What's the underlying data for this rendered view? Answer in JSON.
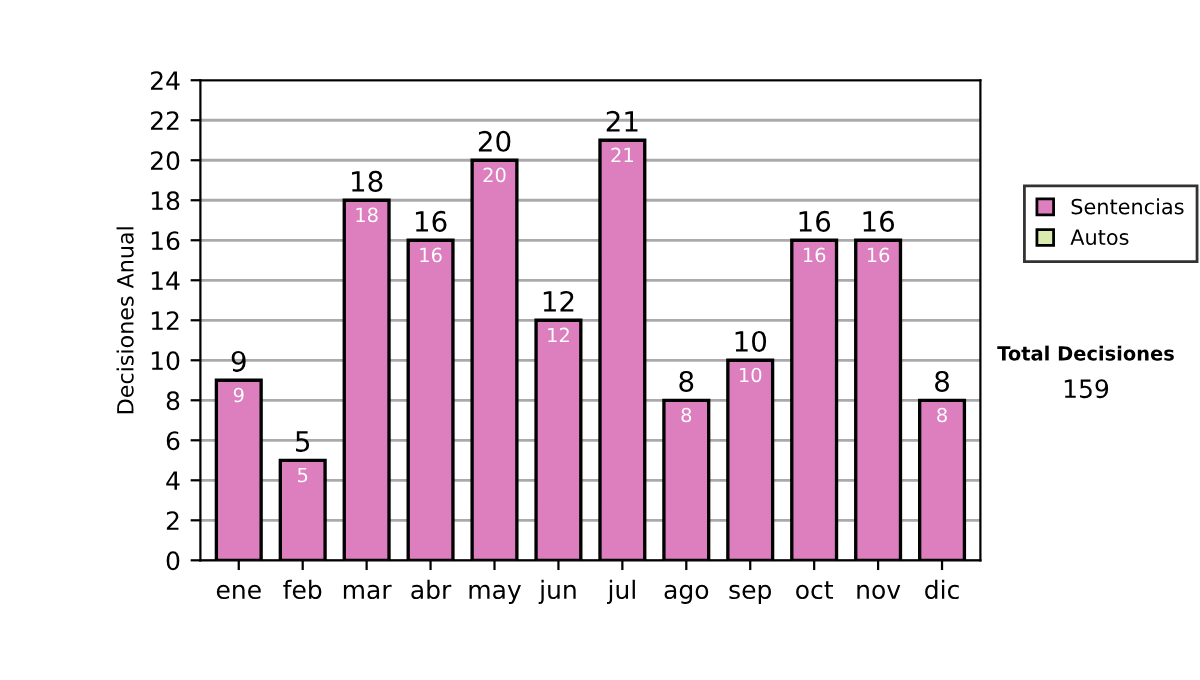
{
  "chart_data": {
    "type": "bar",
    "stacked": true,
    "ylabel": "Decisiones Anual",
    "categories": [
      "ene",
      "feb",
      "mar",
      "abr",
      "may",
      "jun",
      "jul",
      "ago",
      "sep",
      "oct",
      "nov",
      "dic"
    ],
    "series": [
      {
        "name": "Sentencias",
        "color": "#dd7fbf",
        "values": [
          9,
          5,
          18,
          16,
          20,
          12,
          21,
          8,
          10,
          16,
          16,
          8
        ],
        "value_labels": [
          "9",
          "5",
          "18",
          "16",
          "20",
          "12",
          "21",
          "8",
          "10",
          "16",
          "16",
          "8"
        ]
      },
      {
        "name": "Autos",
        "color": "#d9ecae",
        "values": [
          0,
          0,
          0,
          0,
          0,
          0,
          0,
          0,
          0,
          0,
          0,
          0
        ]
      }
    ],
    "totals": [
      "9",
      "5",
      "18",
      "16",
      "20",
      "12",
      "21",
      "8",
      "10",
      "16",
      "16",
      "8"
    ],
    "ylim": [
      0,
      24
    ],
    "yticks": [
      0,
      2,
      4,
      6,
      8,
      10,
      12,
      14,
      16,
      18,
      20,
      22,
      24
    ],
    "grid": "y",
    "legend": "right",
    "annotations": [
      "Total Decisiones",
      "159"
    ]
  }
}
